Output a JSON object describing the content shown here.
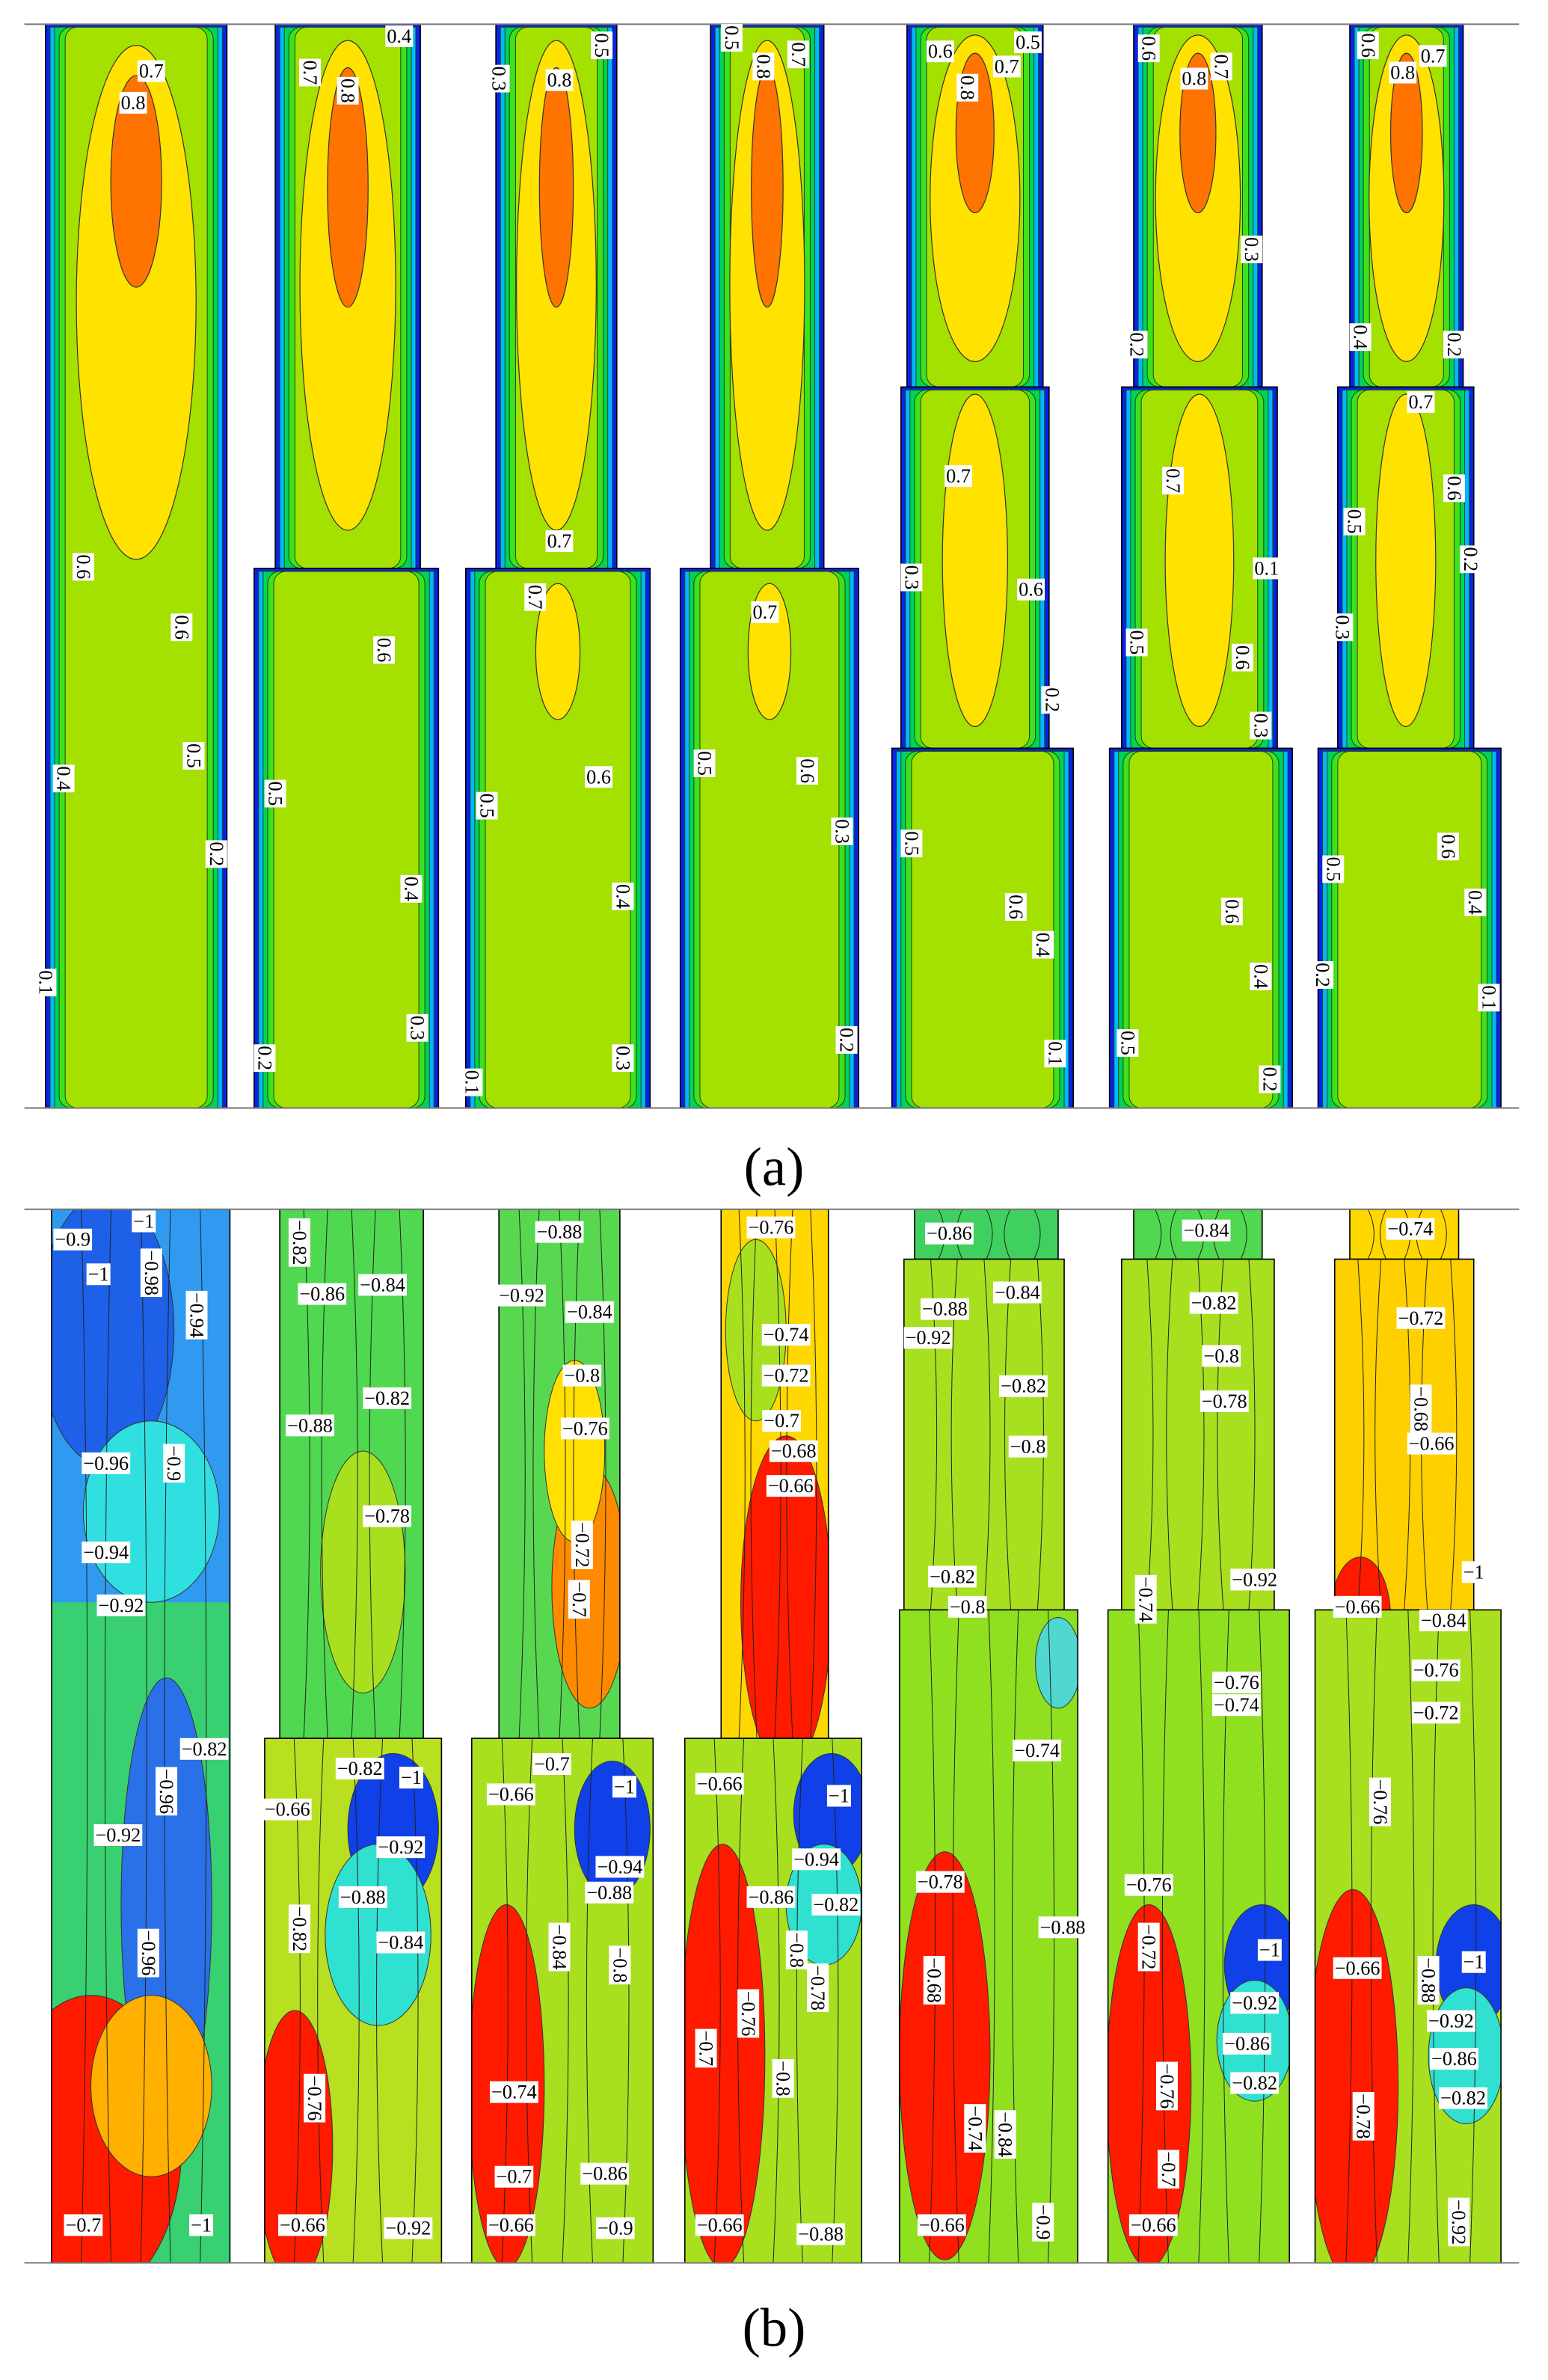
{
  "figure": {
    "panels": [
      {
        "caption": "(a)",
        "columns": [
          [
            "0.7",
            "0.8",
            "0.6",
            "0.6",
            "0.4",
            "0.5",
            "0.2",
            "0.1"
          ],
          [
            "0.4",
            "0.7",
            "0.8",
            "0.6",
            "0.5",
            "0.4",
            "0.3",
            "0.2"
          ],
          [
            "0.5",
            "0.3",
            "0.8",
            "0.7",
            "0.7",
            "0.6",
            "0.5",
            "0.4",
            "0.3",
            "0.1"
          ],
          [
            "0.5",
            "0.7",
            "0.8",
            "0.7",
            "0.5",
            "0.6",
            "0.3",
            "0.2"
          ],
          [
            "0.6",
            "0.5",
            "0.7",
            "0.8",
            "0.7",
            "0.3",
            "0.6",
            "0.2",
            "0.5",
            "0.6",
            "0.4",
            "0.1"
          ],
          [
            "0.6",
            "0.7",
            "0.8",
            "0.3",
            "0.2",
            "0.7",
            "0.1",
            "0.5",
            "0.6",
            "0.3",
            "0.6",
            "0.4",
            "0.5",
            "0.2"
          ],
          [
            "0.6",
            "0.7",
            "0.8",
            "0.4",
            "0.2",
            "0.7",
            "0.5",
            "0.6",
            "0.2",
            "0.3",
            "0.5",
            "0.6",
            "0.4",
            "0.2",
            "0.1"
          ]
        ]
      },
      {
        "caption": "(b)",
        "columns": [
          [
            "−0.9",
            "−1",
            "−1",
            "−0.98",
            "−0.94",
            "−0.96",
            "−0.9",
            "−0.94",
            "−0.92",
            "−0.82",
            "−0.96",
            "−0.92",
            "−0.96",
            "−0.7",
            "−1"
          ],
          [
            "−0.82",
            "−0.86",
            "−0.84",
            "−0.88",
            "−0.82",
            "−0.78",
            "−0.82",
            "−1",
            "−0.66",
            "−0.92",
            "−0.88",
            "−0.84",
            "−0.82",
            "−0.76",
            "−0.66",
            "−0.92"
          ],
          [
            "−0.88",
            "−0.92",
            "−0.84",
            "−0.8",
            "−0.76",
            "−0.72",
            "−0.7",
            "−0.7",
            "−1",
            "−0.66",
            "−0.94",
            "−0.88",
            "−0.84",
            "−0.8",
            "−0.74",
            "−0.7",
            "−0.86",
            "−0.66",
            "−0.9"
          ],
          [
            "−0.76",
            "−0.74",
            "−0.72",
            "−0.7",
            "−0.68",
            "−0.66",
            "−0.66",
            "−1",
            "−0.94",
            "−0.86",
            "−0.82",
            "−0.8",
            "−0.78",
            "−0.76",
            "−0.7",
            "−0.8",
            "−0.66",
            "−0.88"
          ],
          [
            "−0.86",
            "−0.88",
            "−0.92",
            "−0.84",
            "−0.82",
            "−0.8",
            "−0.82",
            "−0.8",
            "−0.74",
            "−0.78",
            "−0.88",
            "−0.68",
            "−0.74",
            "−0.84",
            "−0.9",
            "−0.66"
          ],
          [
            "−0.84",
            "−0.82",
            "−0.8",
            "−0.78",
            "−0.92",
            "−0.74",
            "−0.76",
            "−0.74",
            "−0.76",
            "−0.72",
            "−1",
            "−0.92",
            "−0.86",
            "−0.82",
            "−0.76",
            "−0.7",
            "−0.66"
          ],
          [
            "−0.74",
            "−0.72",
            "−0.68",
            "−0.66",
            "−1",
            "−0.66",
            "−0.84",
            "−0.76",
            "−0.72",
            "−0.76",
            "−0.66",
            "−0.88",
            "−1",
            "−0.92",
            "−0.86",
            "−0.82",
            "−0.78",
            "−0.92"
          ]
        ]
      }
    ]
  }
}
